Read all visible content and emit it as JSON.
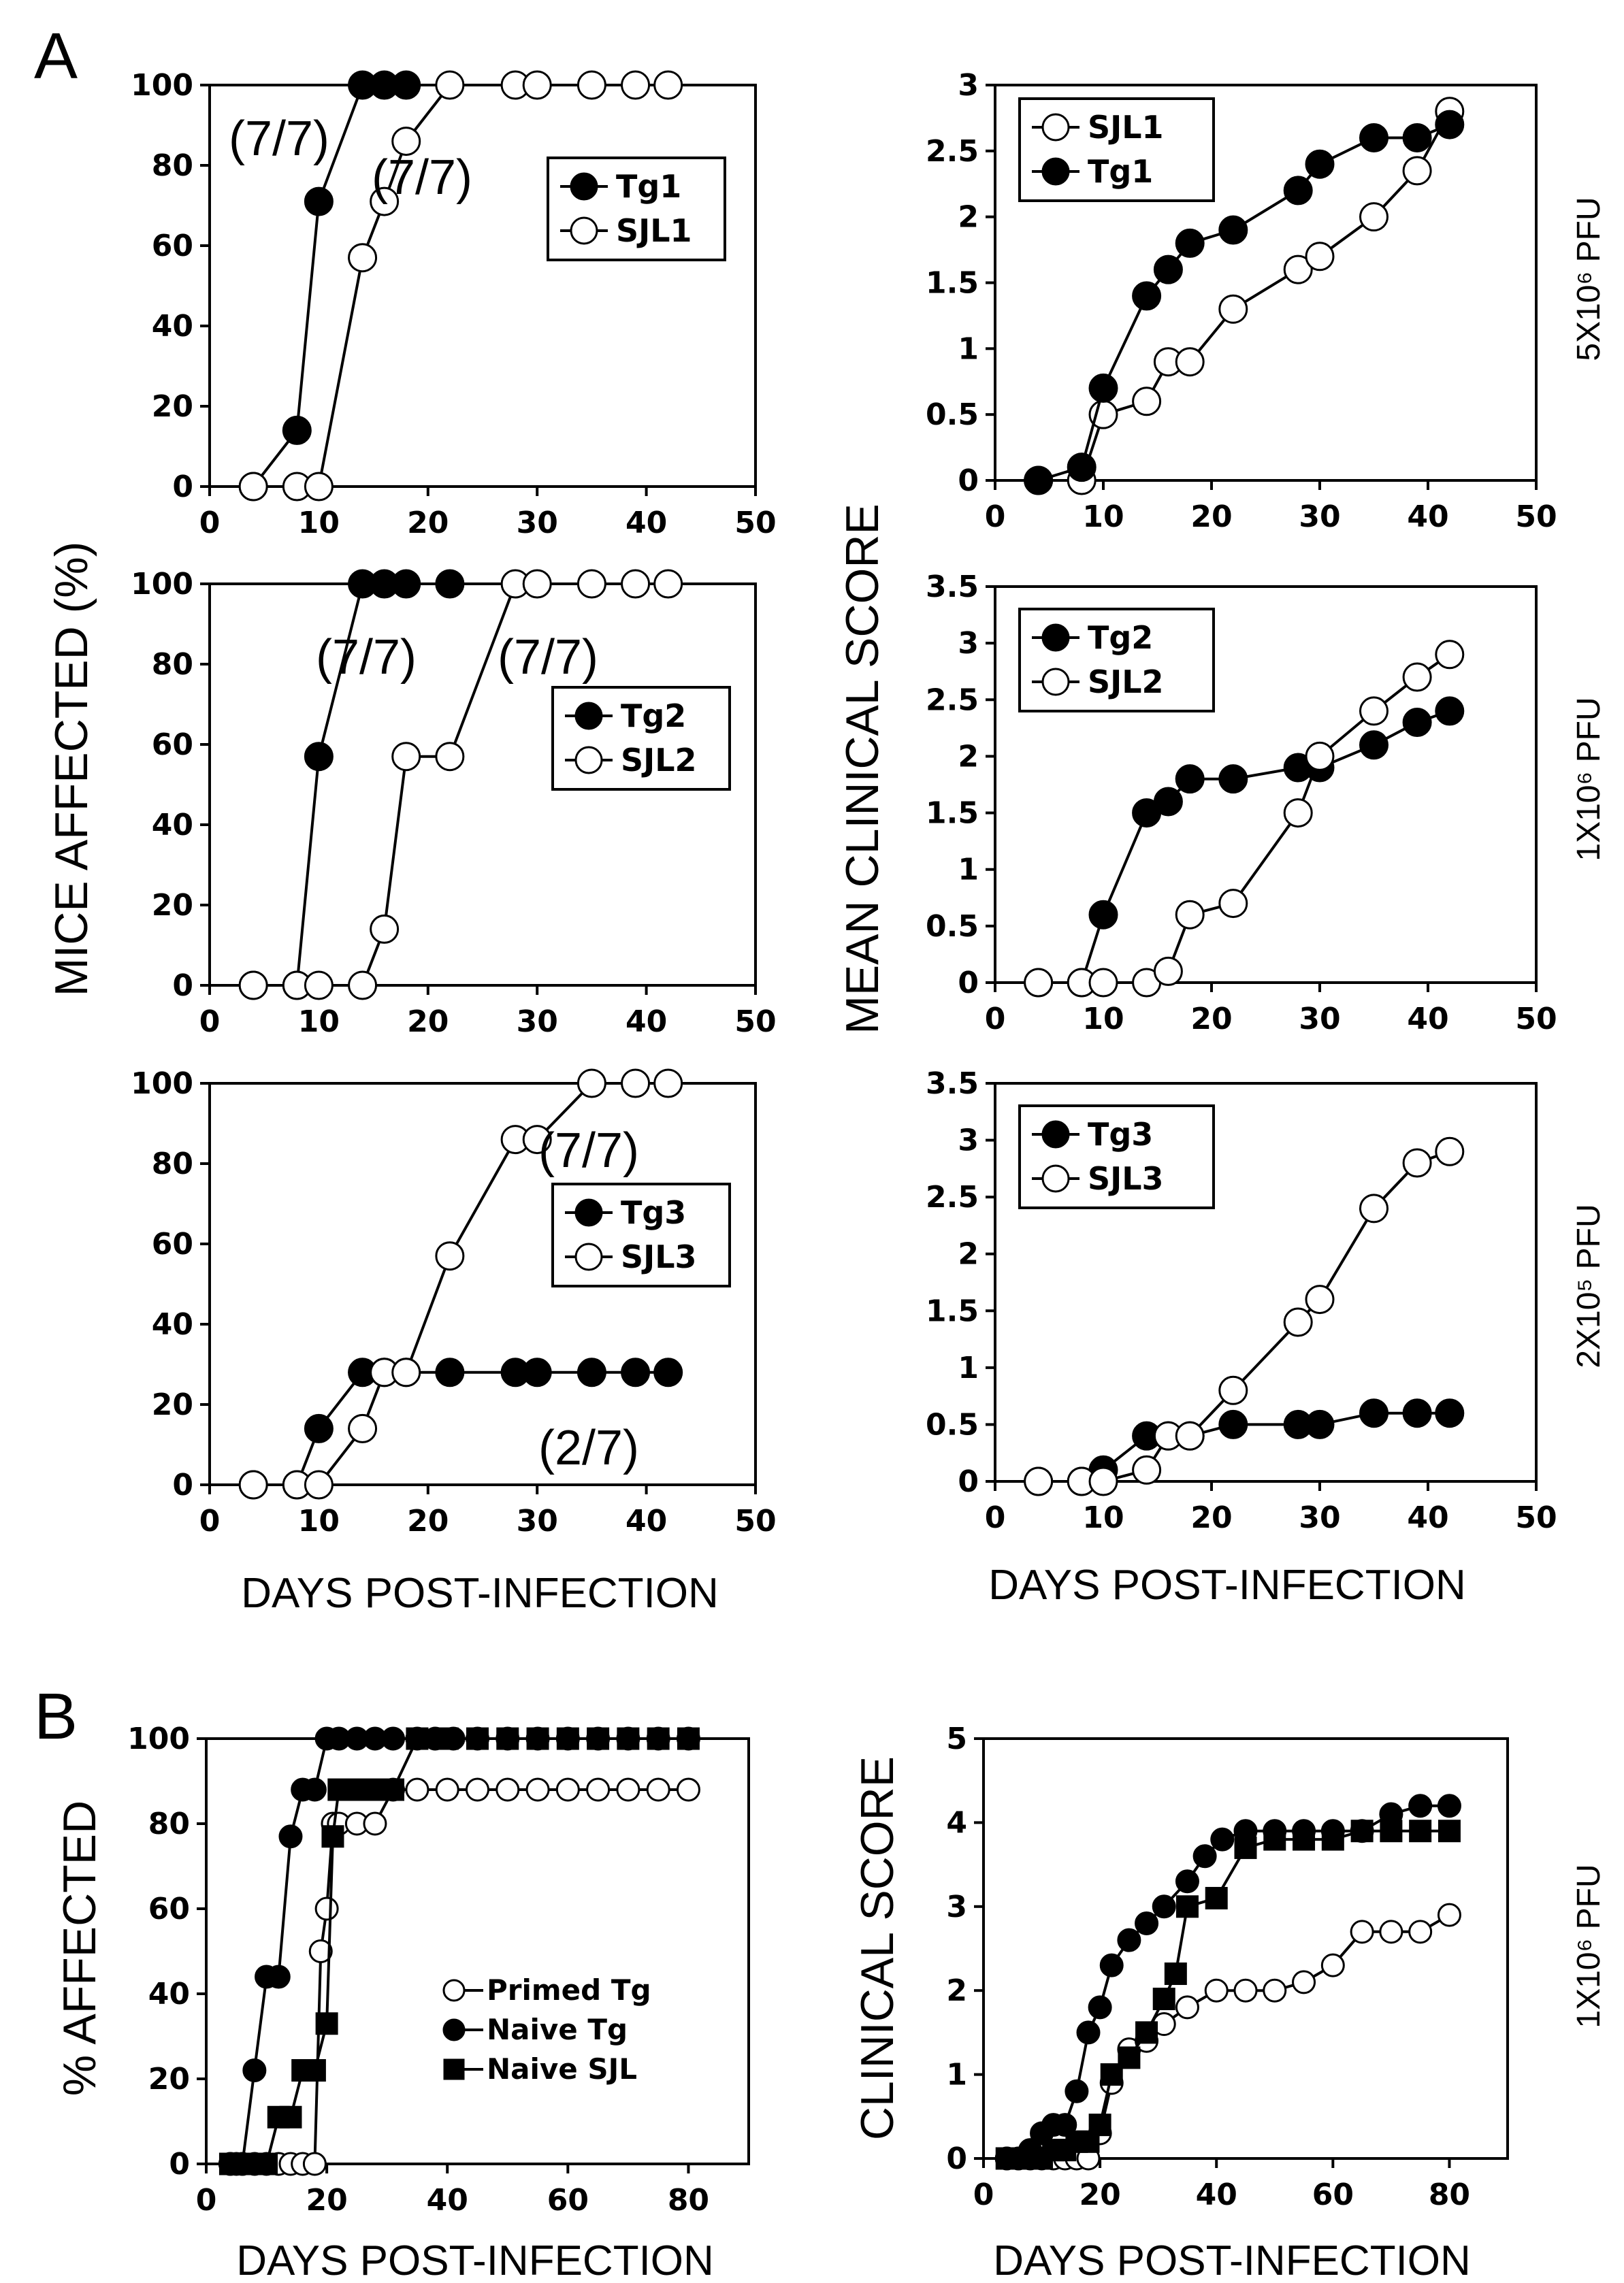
{
  "panel_labels": [
    "A",
    "B"
  ],
  "labels": {
    "a_left_ylabel": "MICE AFFECTED (%)",
    "a_right_ylabel": "MEAN CLINICAL SCORE",
    "a_xlabel": "DAYS POST-INFECTION",
    "b_left_ylabel": "% AFFECTED",
    "b_right_ylabel": "CLINICAL SCORE",
    "b_xlabel": "DAYS POST-INFECTION"
  },
  "dose_labels": [
    "5X10⁶ PFU",
    "1X10⁶ PFU",
    "2X10⁵ PFU",
    "1X10⁶ PFU"
  ],
  "chart_data": [
    {
      "id": "A1",
      "type": "line",
      "xlim": [
        0,
        50
      ],
      "ylim": [
        0,
        100
      ],
      "xticks": [
        0,
        10,
        20,
        30,
        40,
        50
      ],
      "yticks": [
        0,
        20,
        40,
        60,
        80,
        100
      ],
      "legend_placement": "right",
      "series": [
        {
          "name": "Tg1",
          "marker": "filled-circle",
          "x": [
            4,
            8,
            10,
            14,
            16,
            18
          ],
          "y": [
            0,
            14,
            71,
            100,
            100,
            100
          ]
        },
        {
          "name": "SJL1",
          "marker": "open-circle",
          "x": [
            4,
            8,
            10,
            14,
            16,
            18,
            22,
            28,
            30,
            35,
            39,
            42
          ],
          "y": [
            0,
            0,
            0,
            57,
            71,
            86,
            100,
            100,
            100,
            100,
            100,
            100
          ]
        }
      ],
      "annotations": [
        "(7/7)",
        "(7/7)"
      ]
    },
    {
      "id": "A2",
      "type": "line",
      "xlim": [
        0,
        50
      ],
      "ylim": [
        0,
        100
      ],
      "xticks": [
        0,
        10,
        20,
        30,
        40,
        50
      ],
      "yticks": [
        0,
        20,
        40,
        60,
        80,
        100
      ],
      "legend_placement": "right",
      "series": [
        {
          "name": "Tg2",
          "marker": "filled-circle",
          "x": [
            4,
            8,
            10,
            14,
            16,
            18,
            22
          ],
          "y": [
            0,
            0,
            57,
            100,
            100,
            100,
            100
          ]
        },
        {
          "name": "SJL2",
          "marker": "open-circle",
          "x": [
            4,
            8,
            10,
            14,
            16,
            18,
            22,
            28,
            30,
            35,
            39,
            42
          ],
          "y": [
            0,
            0,
            0,
            0,
            14,
            57,
            57,
            100,
            100,
            100,
            100,
            100
          ]
        }
      ],
      "annotations": [
        "(7/7)",
        "(7/7)"
      ]
    },
    {
      "id": "A3",
      "type": "line",
      "xlim": [
        0,
        50
      ],
      "ylim": [
        0,
        100
      ],
      "xticks": [
        0,
        10,
        20,
        30,
        40,
        50
      ],
      "yticks": [
        0,
        20,
        40,
        60,
        80,
        100
      ],
      "legend_placement": "right",
      "series": [
        {
          "name": "Tg3",
          "marker": "filled-circle",
          "x": [
            4,
            8,
            10,
            14,
            16,
            18,
            22,
            28,
            30,
            35,
            39,
            42
          ],
          "y": [
            0,
            0,
            14,
            28,
            28,
            28,
            28,
            28,
            28,
            28,
            28,
            28
          ]
        },
        {
          "name": "SJL3",
          "marker": "open-circle",
          "x": [
            4,
            8,
            10,
            14,
            16,
            18,
            22,
            28,
            30,
            35,
            39,
            42
          ],
          "y": [
            0,
            0,
            0,
            14,
            28,
            28,
            57,
            86,
            86,
            100,
            100,
            100
          ]
        }
      ],
      "annotations": [
        "(7/7)",
        "(2/7)"
      ]
    },
    {
      "id": "A4",
      "type": "line",
      "xlim": [
        0,
        50
      ],
      "ylim": [
        0,
        3
      ],
      "xticks": [
        0,
        10,
        20,
        30,
        40,
        50
      ],
      "yticks": [
        0,
        0.5,
        1,
        1.5,
        2,
        2.5,
        3
      ],
      "legend_placement": "top-left",
      "series": [
        {
          "name": "SJL1",
          "marker": "open-circle",
          "x": [
            4,
            8,
            10,
            14,
            16,
            18,
            22,
            28,
            30,
            35,
            39,
            42
          ],
          "y": [
            0,
            0,
            0.5,
            0.6,
            0.9,
            0.9,
            1.3,
            1.6,
            1.7,
            2.0,
            2.35,
            2.8
          ]
        },
        {
          "name": "Tg1",
          "marker": "filled-circle",
          "x": [
            4,
            8,
            10,
            14,
            16,
            18,
            22,
            28,
            30,
            35,
            39,
            42
          ],
          "y": [
            0,
            0.1,
            0.7,
            1.4,
            1.6,
            1.8,
            1.9,
            2.2,
            2.4,
            2.6,
            2.6,
            2.7
          ]
        }
      ]
    },
    {
      "id": "A5",
      "type": "line",
      "xlim": [
        0,
        50
      ],
      "ylim": [
        0,
        3.5
      ],
      "xticks": [
        0,
        10,
        20,
        30,
        40,
        50
      ],
      "yticks": [
        0,
        0.5,
        1,
        1.5,
        2,
        2.5,
        3,
        3.5
      ],
      "legend_placement": "top-left",
      "series": [
        {
          "name": "Tg2",
          "marker": "filled-circle",
          "x": [
            4,
            8,
            10,
            14,
            16,
            18,
            22,
            28,
            30,
            35,
            39,
            42
          ],
          "y": [
            0,
            0,
            0.6,
            1.5,
            1.6,
            1.8,
            1.8,
            1.9,
            1.9,
            2.1,
            2.3,
            2.4
          ]
        },
        {
          "name": "SJL2",
          "marker": "open-circle",
          "x": [
            4,
            8,
            10,
            14,
            16,
            18,
            22,
            28,
            30,
            35,
            39,
            42
          ],
          "y": [
            0,
            0,
            0,
            0,
            0.1,
            0.6,
            0.7,
            1.5,
            2.0,
            2.4,
            2.7,
            2.9
          ]
        }
      ]
    },
    {
      "id": "A6",
      "type": "line",
      "xlim": [
        0,
        50
      ],
      "ylim": [
        0,
        3.5
      ],
      "xticks": [
        0,
        10,
        20,
        30,
        40,
        50
      ],
      "yticks": [
        0,
        0.5,
        1,
        1.5,
        2,
        2.5,
        3,
        3.5
      ],
      "legend_placement": "top-left",
      "series": [
        {
          "name": "Tg3",
          "marker": "filled-circle",
          "x": [
            4,
            8,
            10,
            14,
            16,
            18,
            22,
            28,
            30,
            35,
            39,
            42
          ],
          "y": [
            0,
            0,
            0.1,
            0.4,
            0.4,
            0.4,
            0.5,
            0.5,
            0.5,
            0.6,
            0.6,
            0.6
          ]
        },
        {
          "name": "SJL3",
          "marker": "open-circle",
          "x": [
            4,
            8,
            10,
            14,
            16,
            18,
            22,
            28,
            30,
            35,
            39,
            42
          ],
          "y": [
            0,
            0,
            0,
            0.1,
            0.4,
            0.4,
            0.8,
            1.4,
            1.6,
            2.4,
            2.8,
            2.9
          ]
        }
      ]
    },
    {
      "id": "B1",
      "type": "line",
      "xlim": [
        0,
        90
      ],
      "ylim": [
        0,
        100
      ],
      "xticks": [
        0,
        20,
        40,
        60,
        80
      ],
      "yticks": [
        0,
        20,
        40,
        60,
        80,
        100
      ],
      "legend_placement": "lower-right",
      "series": [
        {
          "name": "Primed Tg",
          "marker": "open-circle",
          "x": [
            4,
            6,
            8,
            10,
            12,
            14,
            16,
            18,
            19,
            20,
            21,
            22,
            25,
            28,
            31,
            35,
            40,
            45,
            50,
            55,
            60,
            65,
            70,
            75,
            80
          ],
          "y": [
            0,
            0,
            0,
            0,
            0,
            0,
            0,
            0,
            50,
            60,
            80,
            80,
            80,
            80,
            88,
            88,
            88,
            88,
            88,
            88,
            88,
            88,
            88,
            88,
            88
          ]
        },
        {
          "name": "Naive Tg",
          "marker": "filled-circle",
          "x": [
            4,
            5,
            6,
            8,
            10,
            12,
            14,
            16,
            18,
            20,
            22,
            25,
            28,
            31,
            35,
            38,
            41,
            45,
            50,
            55,
            60,
            65,
            70,
            75,
            80
          ],
          "y": [
            0,
            0,
            0,
            22,
            44,
            44,
            77,
            88,
            88,
            100,
            100,
            100,
            100,
            100,
            100,
            100,
            100,
            100,
            100,
            100,
            100,
            100,
            100,
            100,
            100
          ]
        },
        {
          "name": "Naive SJL",
          "marker": "filled-square",
          "x": [
            4,
            6,
            8,
            10,
            12,
            14,
            16,
            18,
            20,
            21,
            22,
            25,
            28,
            31,
            35,
            40,
            45,
            50,
            55,
            60,
            65,
            70,
            75,
            80
          ],
          "y": [
            0,
            0,
            0,
            0,
            11,
            11,
            22,
            22,
            33,
            77,
            88,
            88,
            88,
            88,
            100,
            100,
            100,
            100,
            100,
            100,
            100,
            100,
            100,
            100
          ]
        }
      ]
    },
    {
      "id": "B2",
      "type": "line",
      "xlim": [
        0,
        90
      ],
      "ylim": [
        0,
        5
      ],
      "xticks": [
        0,
        20,
        40,
        60,
        80
      ],
      "yticks": [
        0,
        1,
        2,
        3,
        4,
        5
      ],
      "series": [
        {
          "name": "Primed Tg",
          "marker": "open-circle",
          "x": [
            4,
            6,
            8,
            10,
            12,
            14,
            16,
            18,
            20,
            22,
            25,
            28,
            31,
            35,
            40,
            45,
            50,
            55,
            60,
            65,
            70,
            75,
            80
          ],
          "y": [
            0,
            0,
            0,
            0,
            0,
            0,
            0,
            0,
            0.3,
            0.9,
            1.3,
            1.4,
            1.6,
            1.8,
            2.0,
            2.0,
            2.0,
            2.1,
            2.3,
            2.7,
            2.7,
            2.7,
            2.9
          ]
        },
        {
          "name": "Naive Tg",
          "marker": "filled-circle",
          "x": [
            4,
            6,
            8,
            10,
            12,
            14,
            16,
            18,
            20,
            22,
            25,
            28,
            31,
            35,
            38,
            41,
            45,
            50,
            55,
            60,
            65,
            70,
            75,
            80
          ],
          "y": [
            0,
            0,
            0.1,
            0.3,
            0.4,
            0.4,
            0.8,
            1.5,
            1.8,
            2.3,
            2.6,
            2.8,
            3.0,
            3.3,
            3.6,
            3.8,
            3.9,
            3.9,
            3.9,
            3.9,
            3.9,
            4.1,
            4.2,
            4.2
          ]
        },
        {
          "name": "Naive SJL",
          "marker": "filled-square",
          "x": [
            4,
            6,
            8,
            10,
            12,
            14,
            16,
            18,
            20,
            22,
            25,
            28,
            31,
            33,
            35,
            40,
            45,
            50,
            55,
            60,
            65,
            70,
            75,
            80
          ],
          "y": [
            0,
            0,
            0,
            0,
            0.1,
            0.1,
            0.2,
            0.2,
            0.4,
            1.0,
            1.2,
            1.5,
            1.9,
            2.2,
            3.0,
            3.1,
            3.7,
            3.8,
            3.8,
            3.8,
            3.9,
            3.9,
            3.9,
            3.9
          ]
        }
      ]
    }
  ]
}
